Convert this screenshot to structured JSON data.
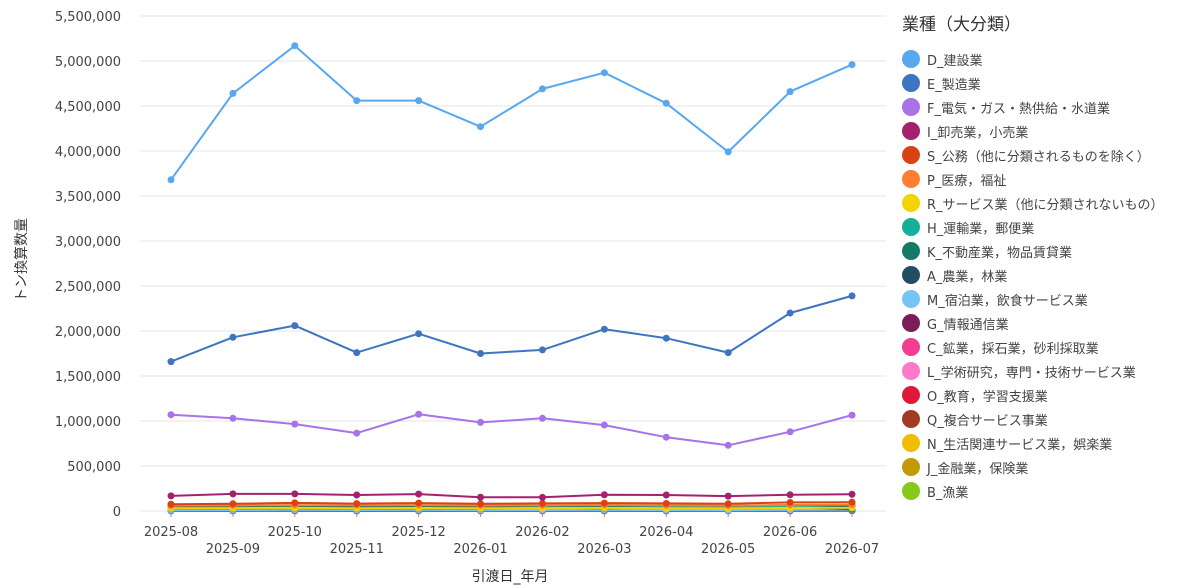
{
  "chart_data": {
    "type": "line",
    "x": [
      "2025-08",
      "2025-09",
      "2025-10",
      "2025-11",
      "2025-12",
      "2026-01",
      "2026-02",
      "2026-03",
      "2026-04",
      "2026-05",
      "2026-06",
      "2026-07"
    ],
    "xlabel": "引渡日_年月",
    "ylabel": "トン換算数量",
    "ylim": [
      0,
      5500000
    ],
    "yticks": [
      0,
      500000,
      1000000,
      1500000,
      2000000,
      2500000,
      3000000,
      3500000,
      4000000,
      4500000,
      5000000,
      5500000
    ],
    "ytick_labels": [
      "0",
      "500,000",
      "1,000,000",
      "1,500,000",
      "2,000,000",
      "2,500,000",
      "3,000,000",
      "3,500,000",
      "4,000,000",
      "4,500,000",
      "5,000,000",
      "5,500,000"
    ],
    "grid": true,
    "legend_title": "業種（大分類）",
    "legend_position": "right",
    "series": [
      {
        "name": "D_建設業",
        "color": "#58a7f1",
        "values": [
          3680000,
          4640000,
          5170000,
          4560000,
          4560000,
          4270000,
          4690000,
          4870000,
          4530000,
          3990000,
          4660000,
          4960000
        ]
      },
      {
        "name": "E_製造業",
        "color": "#3e75c0",
        "values": [
          1660000,
          1930000,
          2060000,
          1760000,
          1970000,
          1750000,
          1790000,
          2020000,
          1920000,
          1760000,
          2200000,
          2390000
        ]
      },
      {
        "name": "F_電気・ガス・熱供給・水道業",
        "color": "#a872e8",
        "values": [
          1070000,
          1030000,
          965000,
          865000,
          1075000,
          985000,
          1030000,
          955000,
          820000,
          730000,
          880000,
          1065000
        ]
      },
      {
        "name": "I_卸売業，小売業",
        "color": "#a3226e",
        "values": [
          168000,
          190000,
          190000,
          178000,
          188000,
          153000,
          152000,
          180000,
          178000,
          165000,
          180000,
          186000
        ]
      },
      {
        "name": "S_公務（他に分類されるものを除く）",
        "color": "#d94214",
        "values": [
          75000,
          80000,
          90000,
          82000,
          88000,
          80000,
          85000,
          88000,
          84000,
          80000,
          95000,
          98000
        ]
      },
      {
        "name": "P_医療，福祉",
        "color": "#ff7f32",
        "values": [
          60000,
          62000,
          66000,
          63000,
          66000,
          61000,
          64000,
          67000,
          63000,
          60000,
          68000,
          70000
        ]
      },
      {
        "name": "R_サービス業（他に分類されないもの）",
        "color": "#f5d300",
        "values": [
          30000,
          32000,
          34000,
          31000,
          33000,
          30000,
          32000,
          34000,
          31000,
          29000,
          35000,
          36000
        ]
      },
      {
        "name": "H_運輸業，郵便業",
        "color": "#16b09a",
        "values": [
          25000,
          27000,
          29000,
          26000,
          28000,
          25000,
          40000,
          28000,
          45000,
          35000,
          50000,
          30000
        ]
      },
      {
        "name": "K_不動産業，物品賃貸業",
        "color": "#137a68",
        "values": [
          40000,
          42000,
          45000,
          41000,
          44000,
          40000,
          43000,
          46000,
          42000,
          39000,
          47000,
          20000
        ]
      },
      {
        "name": "A_農業，林業",
        "color": "#224d63",
        "values": [
          45000,
          47000,
          50000,
          46000,
          49000,
          45000,
          48000,
          50000,
          46000,
          43000,
          52000,
          54000
        ]
      },
      {
        "name": "M_宿泊業，飲食サービス業",
        "color": "#76c4f7",
        "values": [
          10000,
          11000,
          12000,
          11000,
          12000,
          10000,
          11000,
          12000,
          11000,
          10000,
          12000,
          13000
        ]
      },
      {
        "name": "G_情報通信業",
        "color": "#7b1e58",
        "values": [
          8000,
          9000,
          9000,
          8000,
          9000,
          8000,
          9000,
          9000,
          8000,
          8000,
          9000,
          10000
        ]
      },
      {
        "name": "C_鉱業，採石業，砂利採取業",
        "color": "#f23d93",
        "values": [
          6000,
          7000,
          7000,
          6000,
          7000,
          6000,
          7000,
          7000,
          6000,
          6000,
          7000,
          8000
        ]
      },
      {
        "name": "L_学術研究，専門・技術サービス業",
        "color": "#ff79c8",
        "values": [
          5000,
          5000,
          6000,
          5000,
          6000,
          5000,
          5000,
          6000,
          5000,
          5000,
          6000,
          6000
        ]
      },
      {
        "name": "O_教育，学習支援業",
        "color": "#e0193a",
        "values": [
          4000,
          4000,
          5000,
          4000,
          5000,
          4000,
          4000,
          5000,
          4000,
          4000,
          5000,
          5000
        ]
      },
      {
        "name": "Q_複合サービス事業",
        "color": "#a23b24",
        "values": [
          3000,
          3000,
          4000,
          3000,
          4000,
          3000,
          3000,
          4000,
          3000,
          3000,
          4000,
          4000
        ]
      },
      {
        "name": "N_生活関連サービス業，娯楽業",
        "color": "#f0bd00",
        "values": [
          2500,
          2500,
          3000,
          2500,
          3000,
          2500,
          2500,
          3000,
          2500,
          2500,
          3000,
          3000
        ]
      },
      {
        "name": "J_金融業，保険業",
        "color": "#c29a05",
        "values": [
          2000,
          2000,
          2500,
          2000,
          2500,
          2000,
          2000,
          2500,
          2000,
          2000,
          2500,
          2500
        ]
      },
      {
        "name": "B_漁業",
        "color": "#86c91c",
        "values": [
          1000,
          1000,
          1500,
          1000,
          1500,
          1000,
          1000,
          1500,
          1000,
          1000,
          1500,
          1500
        ]
      }
    ]
  }
}
